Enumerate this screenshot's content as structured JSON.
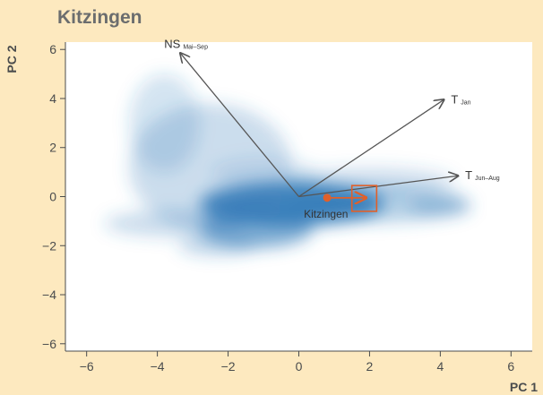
{
  "title": "Kitzingen",
  "colors": {
    "background": "#fde9bf",
    "plot_background": "#ffffff",
    "density": "#2f78b7",
    "vector": "#555555",
    "site": "#e0602a"
  },
  "chart_data": {
    "type": "scatter",
    "title": "Kitzingen",
    "xlabel": "PC 1",
    "ylabel": "PC 2",
    "xlim": [
      -6.6,
      6.6
    ],
    "ylim": [
      -6.3,
      6.3
    ],
    "xticks": [
      -6,
      -4,
      -2,
      0,
      2,
      4,
      6
    ],
    "yticks": [
      -6,
      -4,
      -2,
      0,
      2,
      4,
      6
    ],
    "grid": false,
    "density_blobs": [
      {
        "x": -0.2,
        "y": -0.3,
        "rx": 2.6,
        "ry": 0.9,
        "w": 0.9
      },
      {
        "x": -1.2,
        "y": -1.3,
        "rx": 1.6,
        "ry": 0.8,
        "w": 0.6
      },
      {
        "x": -2.5,
        "y": 1.2,
        "rx": 2.3,
        "ry": 2.6,
        "w": 0.25
      },
      {
        "x": -3.8,
        "y": 3.0,
        "rx": 1.0,
        "ry": 2.0,
        "w": 0.2
      },
      {
        "x": 2.2,
        "y": -0.3,
        "rx": 2.6,
        "ry": 0.75,
        "w": 0.35
      },
      {
        "x": 2.0,
        "y": 0.6,
        "rx": 2.4,
        "ry": 0.6,
        "w": 0.22
      },
      {
        "x": -3.5,
        "y": -1.1,
        "rx": 2.0,
        "ry": 0.55,
        "w": 0.25
      },
      {
        "x": -2.3,
        "y": -2.0,
        "rx": 1.1,
        "ry": 0.4,
        "w": 0.3
      },
      {
        "x": -1.0,
        "y": 1.0,
        "rx": 1.5,
        "ry": 0.6,
        "w": 0.15
      },
      {
        "x": 4.0,
        "y": -0.4,
        "rx": 0.9,
        "ry": 0.4,
        "w": 0.3
      }
    ],
    "vectors": [
      {
        "name": "NS",
        "subscript": "Mai–Sep",
        "x": -3.35,
        "y": 5.85
      },
      {
        "name": "T",
        "subscript": "Jan",
        "x": 4.1,
        "y": 3.95
      },
      {
        "name": "T",
        "subscript": "Jun–Aug",
        "x": 4.5,
        "y": 0.85
      }
    ],
    "site": {
      "name": "Kitzingen",
      "x": 0.8,
      "y": -0.05,
      "arrow_to": {
        "x": 1.9,
        "y": -0.05
      },
      "box": {
        "x0": 1.5,
        "x1": 2.2,
        "y0": -0.6,
        "y1": 0.45
      }
    }
  }
}
